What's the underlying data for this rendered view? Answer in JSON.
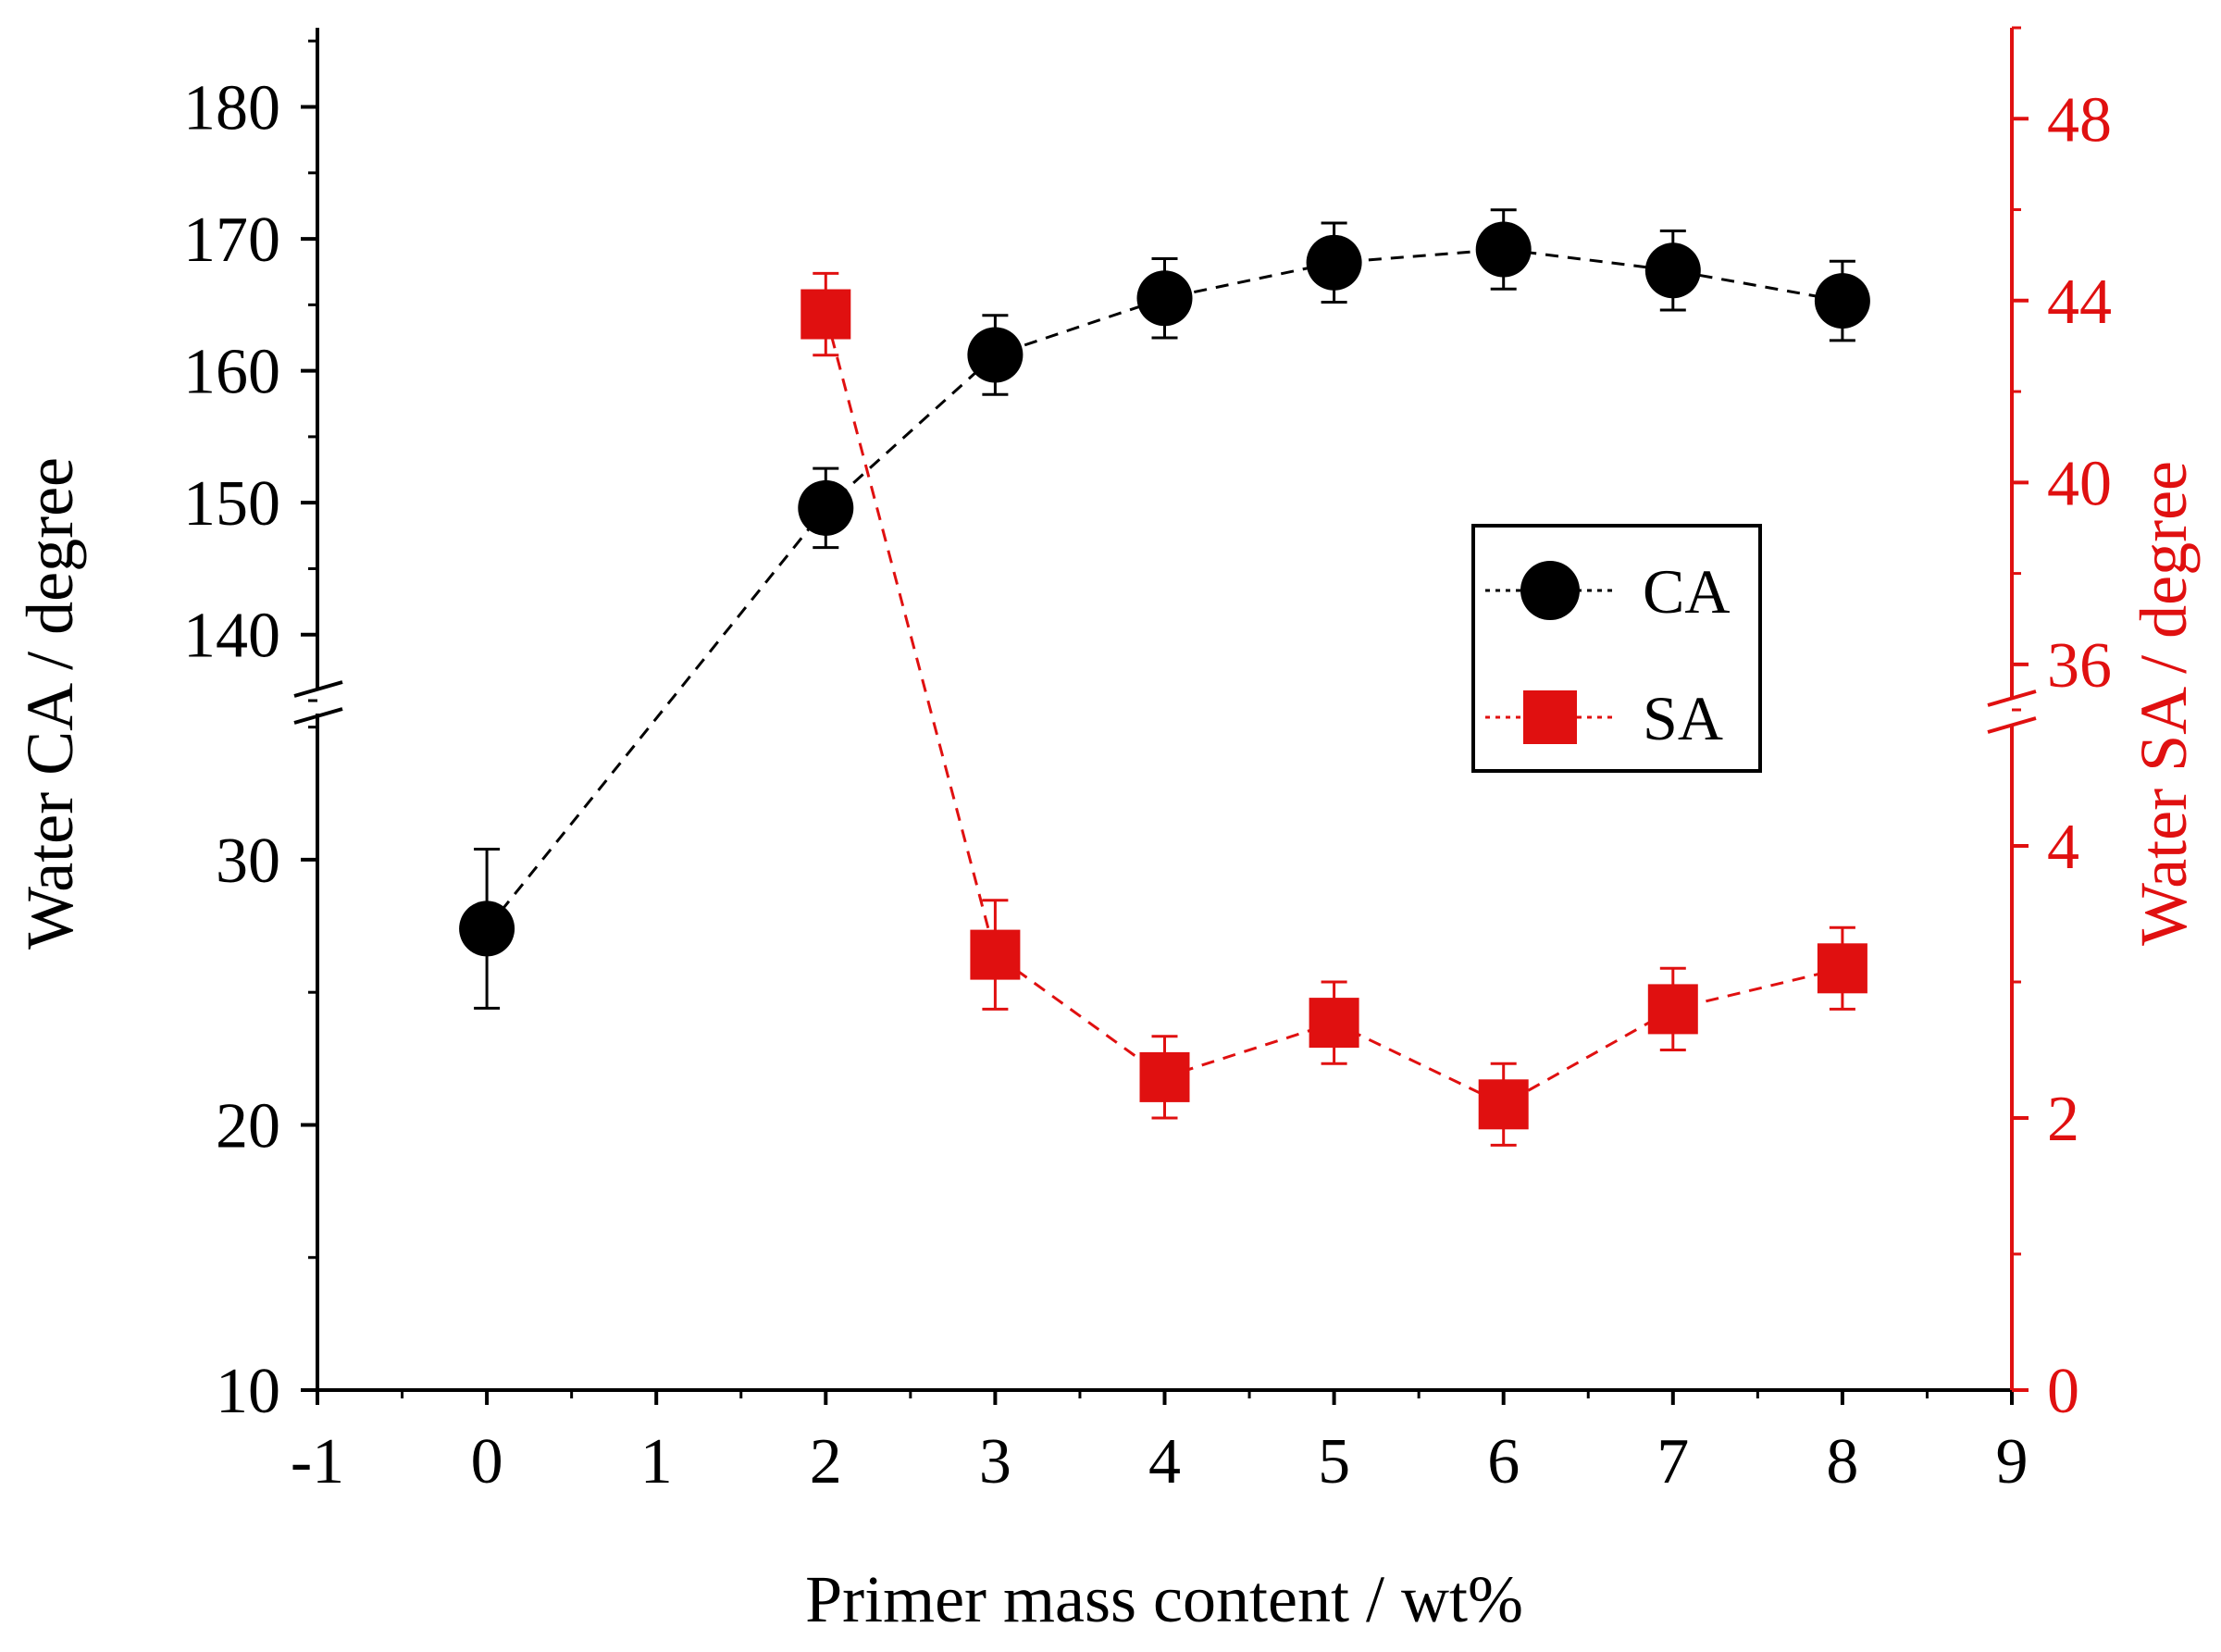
{
  "chart_data": {
    "type": "scatter",
    "xlabel": "Primer mass content / wt%",
    "ylabel_left": "Water CA / degree",
    "ylabel_right": "Water SA / degree",
    "colors": {
      "ca": "#000000",
      "sa": "#e01010",
      "axis": "#000000",
      "right_axis": "#e01010"
    },
    "x_ticks": [
      "-1",
      "0",
      "1",
      "2",
      "3",
      "4",
      "5",
      "6",
      "7",
      "8",
      "9"
    ],
    "xlim": [
      -1,
      9
    ],
    "left_axis": {
      "lower": {
        "range": [
          10,
          36
        ],
        "ticks": [
          "10",
          "20",
          "30"
        ]
      },
      "upper": {
        "range": [
          135,
          186
        ],
        "ticks": [
          "140",
          "150",
          "160",
          "170",
          "180"
        ]
      }
    },
    "right_axis": {
      "lower": {
        "range": [
          0,
          5
        ],
        "ticks": [
          "0",
          "2",
          "4"
        ]
      },
      "upper": {
        "range": [
          35,
          50
        ],
        "ticks": [
          "36",
          "40",
          "44",
          "48"
        ]
      }
    },
    "legend": {
      "position": "center-right",
      "entries": [
        "CA",
        "SA"
      ]
    },
    "series": [
      {
        "name": "CA",
        "axis": "left",
        "x": [
          0,
          2,
          3,
          4,
          5,
          6,
          7,
          8
        ],
        "y": [
          27.4,
          149.6,
          161.2,
          165.5,
          168.2,
          169.2,
          167.6,
          165.3
        ],
        "err": [
          3.0,
          3.0,
          3.0,
          3.0,
          3.0,
          3.0,
          3.0,
          3.0
        ]
      },
      {
        "name": "SA",
        "axis": "right",
        "x": [
          2,
          3,
          4,
          5,
          6,
          7,
          8
        ],
        "y": [
          43.7,
          3.2,
          2.3,
          2.7,
          2.1,
          2.8,
          3.1
        ],
        "err": [
          0.9,
          0.4,
          0.3,
          0.3,
          0.3,
          0.3,
          0.3
        ]
      }
    ]
  }
}
